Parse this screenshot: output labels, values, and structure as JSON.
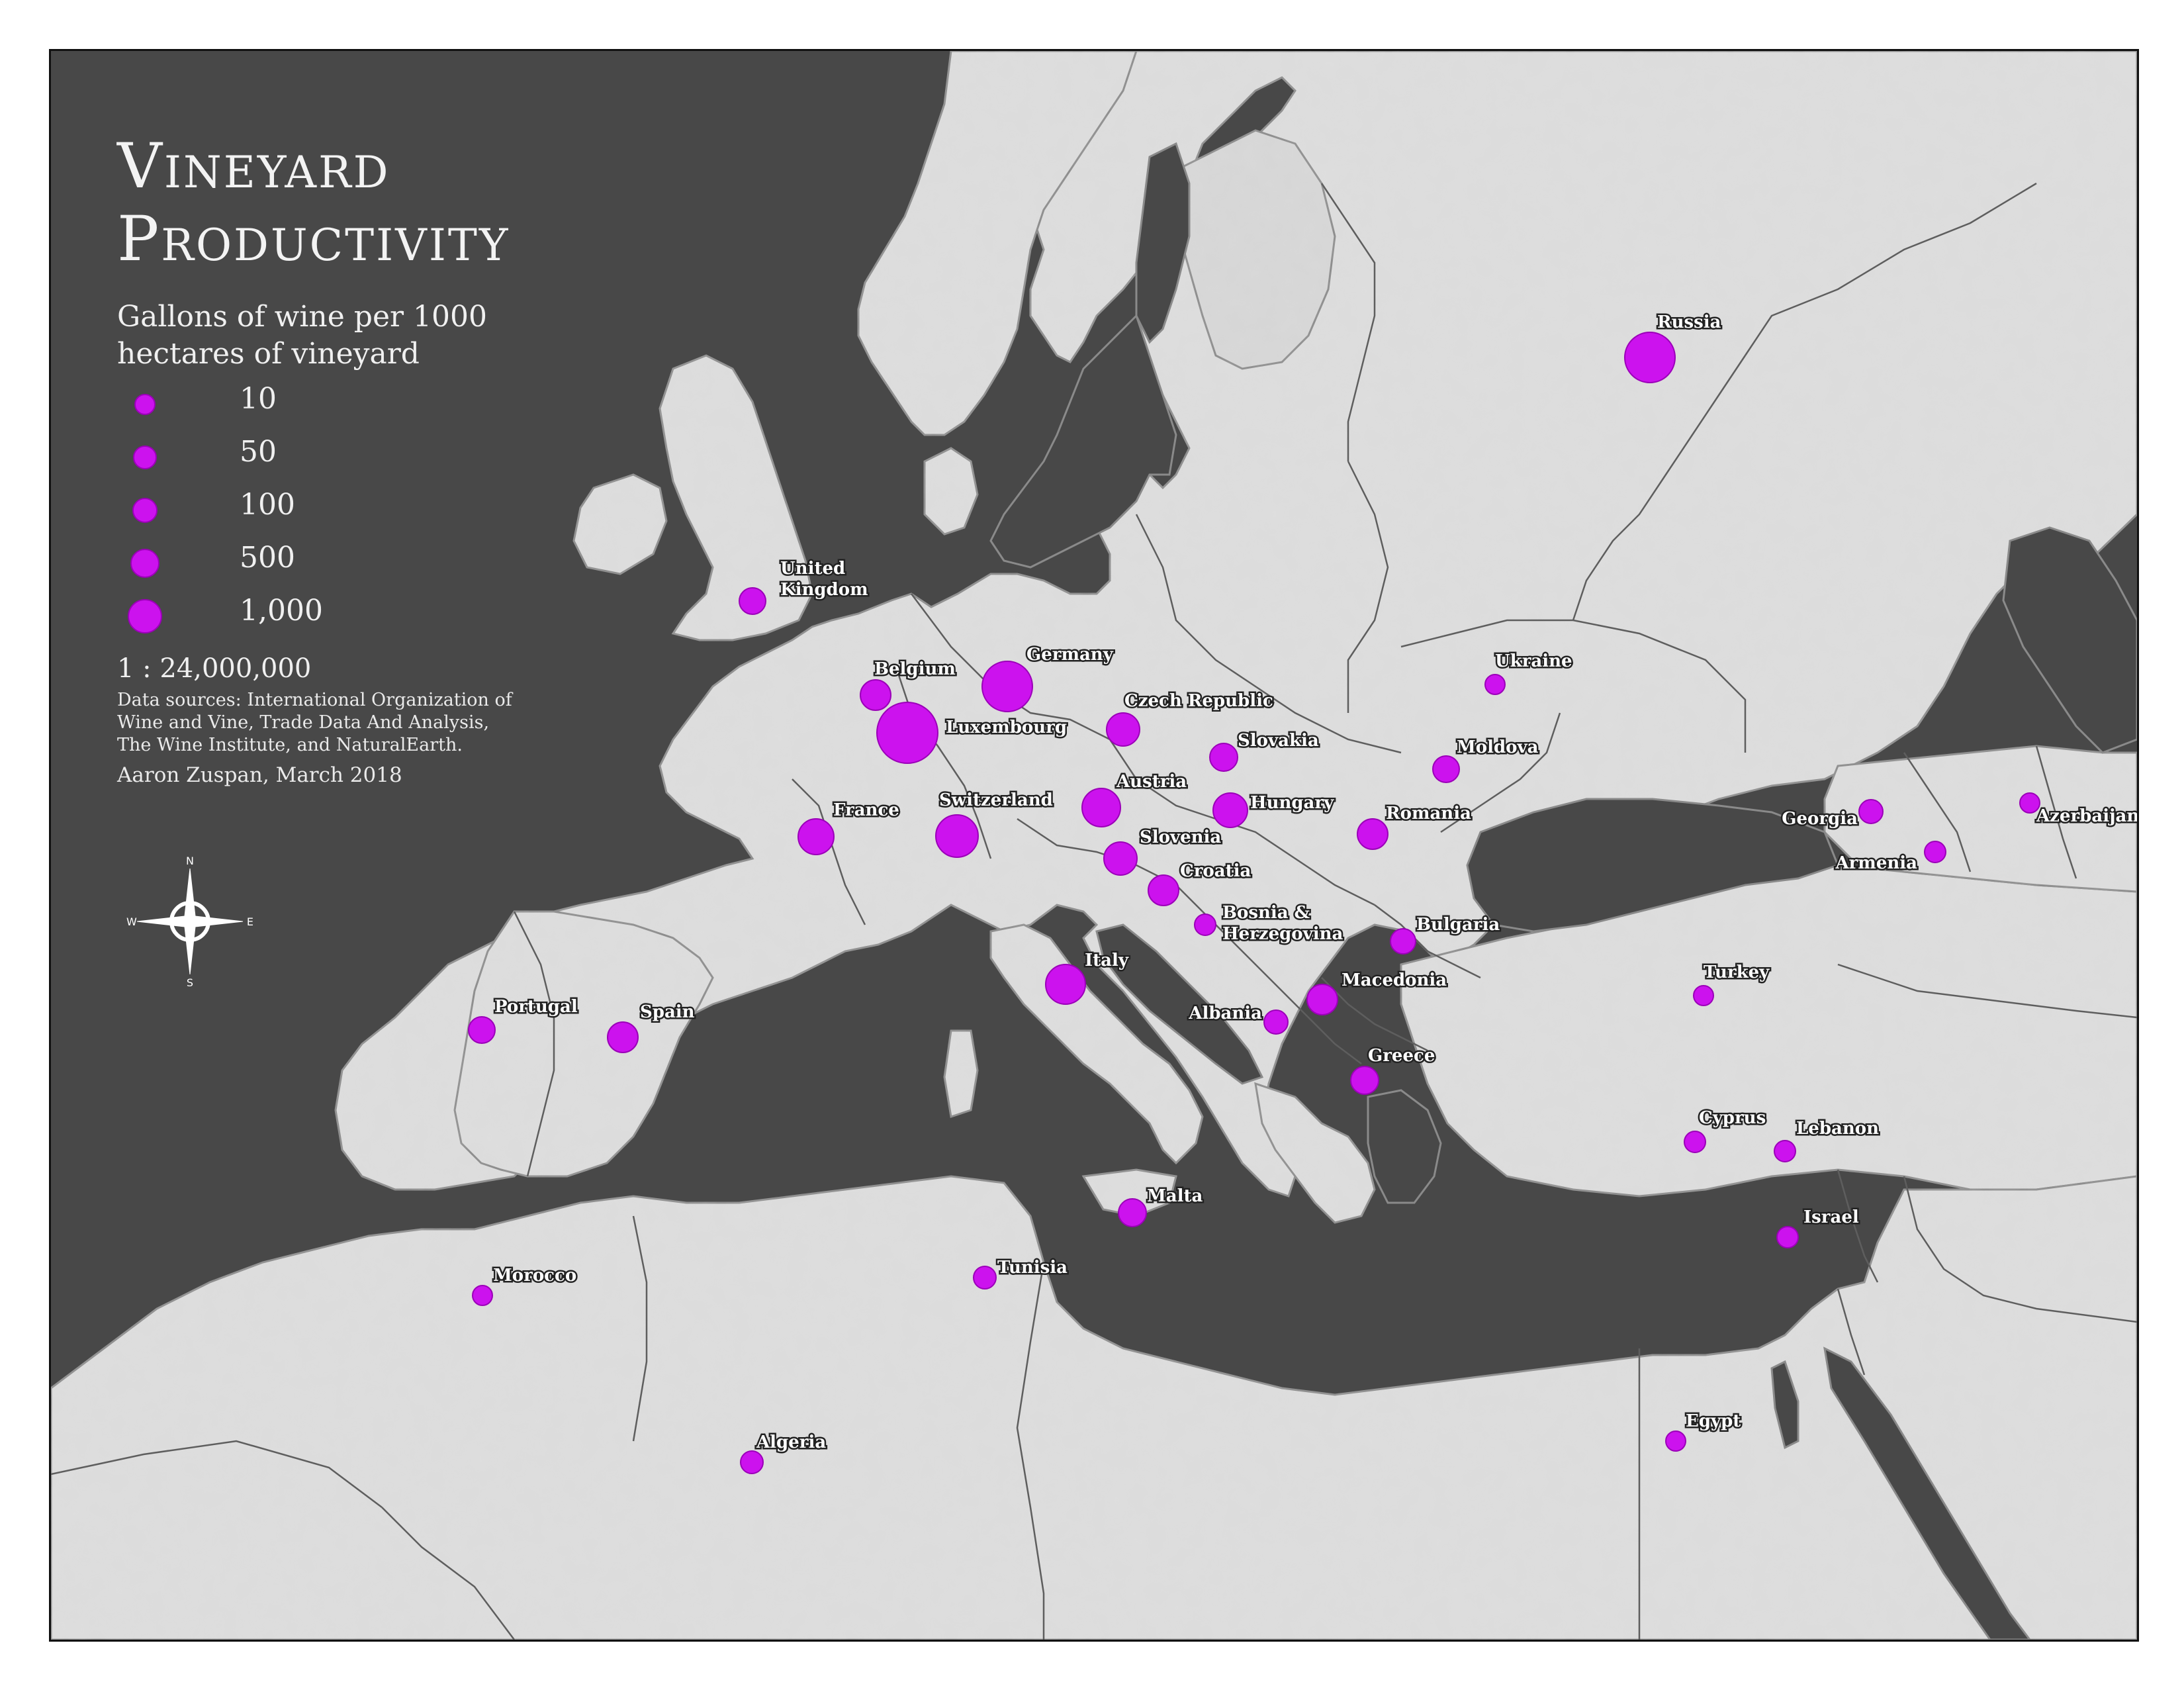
{
  "title_line1": "Vineyard",
  "title_line2": "Productivity",
  "subtitle_line1": "Gallons of wine per 1000",
  "subtitle_line2": "hectares of vineyard",
  "legend": [
    {
      "label": "10",
      "value": 10
    },
    {
      "label": "50",
      "value": 50
    },
    {
      "label": "100",
      "value": 100
    },
    {
      "label": "500",
      "value": 500
    },
    {
      "label": "1,000",
      "value": 1000
    }
  ],
  "scale": "1 : 24,000,000",
  "sources_line1": "Data sources: International Organization of",
  "sources_line2": "Wine and Vine, Trade Data And Analysis,",
  "sources_line3": "The Wine Institute, and NaturalEarth.",
  "author": "Aaron Zuspan, March 2018",
  "compass": {
    "n": "N",
    "s": "S",
    "e": "E",
    "w": "W"
  },
  "colors": {
    "sea": "#484848",
    "land": "#dcdcdc",
    "border": "#5a5a5a",
    "bubble": "#cc12ee"
  },
  "countries": [
    {
      "name": "Russia",
      "label": "Russia"
    },
    {
      "name": "United Kingdom",
      "label": "United\nKingdom"
    },
    {
      "name": "Germany",
      "label": "Germany"
    },
    {
      "name": "Belgium",
      "label": "Belgium"
    },
    {
      "name": "Luxembourg",
      "label": "Luxembourg"
    },
    {
      "name": "Czech Republic",
      "label": "Czech Republic"
    },
    {
      "name": "Slovakia",
      "label": "Slovakia"
    },
    {
      "name": "Ukraine",
      "label": "Ukraine"
    },
    {
      "name": "Moldova",
      "label": "Moldova"
    },
    {
      "name": "Austria",
      "label": "Austria"
    },
    {
      "name": "Hungary",
      "label": "Hungary"
    },
    {
      "name": "Romania",
      "label": "Romania"
    },
    {
      "name": "Switzerland",
      "label": "Switzerland"
    },
    {
      "name": "France",
      "label": "France"
    },
    {
      "name": "Slovenia",
      "label": "Slovenia"
    },
    {
      "name": "Croatia",
      "label": "Croatia"
    },
    {
      "name": "Bosnia & Herzegovina",
      "label": "Bosnia &\nHerzegovina"
    },
    {
      "name": "Bulgaria",
      "label": "Bulgaria"
    },
    {
      "name": "Georgia",
      "label": "Georgia"
    },
    {
      "name": "Azerbaijan",
      "label": "Azerbaijan"
    },
    {
      "name": "Armenia",
      "label": "Armenia"
    },
    {
      "name": "Italy",
      "label": "Italy"
    },
    {
      "name": "Macedonia",
      "label": "Macedonia"
    },
    {
      "name": "Albania",
      "label": "Albania"
    },
    {
      "name": "Turkey",
      "label": "Turkey"
    },
    {
      "name": "Portugal",
      "label": "Portugal"
    },
    {
      "name": "Spain",
      "label": "Spain"
    },
    {
      "name": "Greece",
      "label": "Greece"
    },
    {
      "name": "Cyprus",
      "label": "Cyprus"
    },
    {
      "name": "Lebanon",
      "label": "Lebanon"
    },
    {
      "name": "Malta",
      "label": "Malta"
    },
    {
      "name": "Israel",
      "label": "Israel"
    },
    {
      "name": "Morocco",
      "label": "Morocco"
    },
    {
      "name": "Tunisia",
      "label": "Tunisia"
    },
    {
      "name": "Algeria",
      "label": "Algeria"
    },
    {
      "name": "Egypt",
      "label": "Egypt"
    }
  ]
}
